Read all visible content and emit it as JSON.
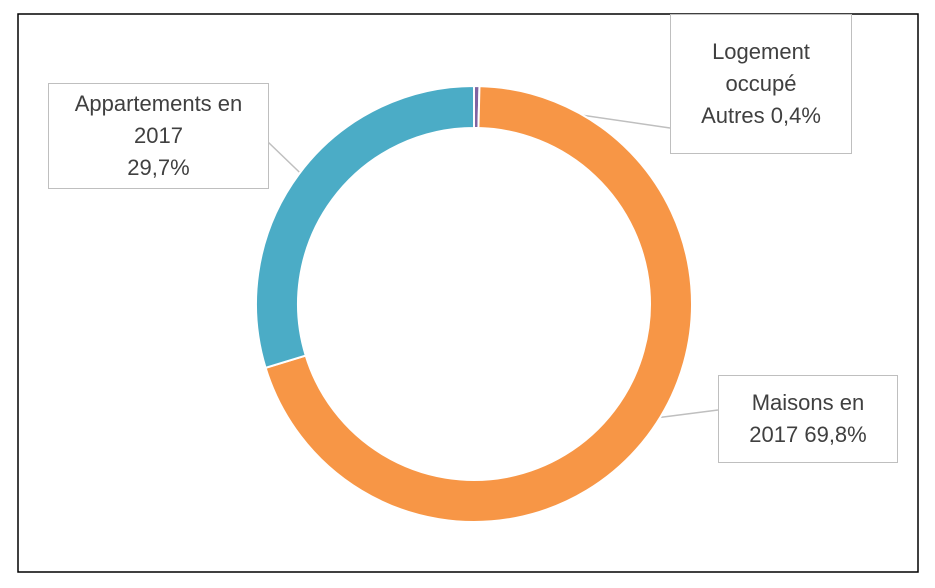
{
  "chart_data": {
    "type": "donut",
    "categories": [
      "Maisons en 2017",
      "Appartements en 2017",
      "Logement occupé Autres"
    ],
    "values": [
      69.8,
      29.7,
      0.4
    ],
    "value_labels": [
      "69,8%",
      "29,7%",
      "0,4%"
    ],
    "colors": [
      "#f79646",
      "#4bacc6",
      "#8064a2"
    ]
  }
}
